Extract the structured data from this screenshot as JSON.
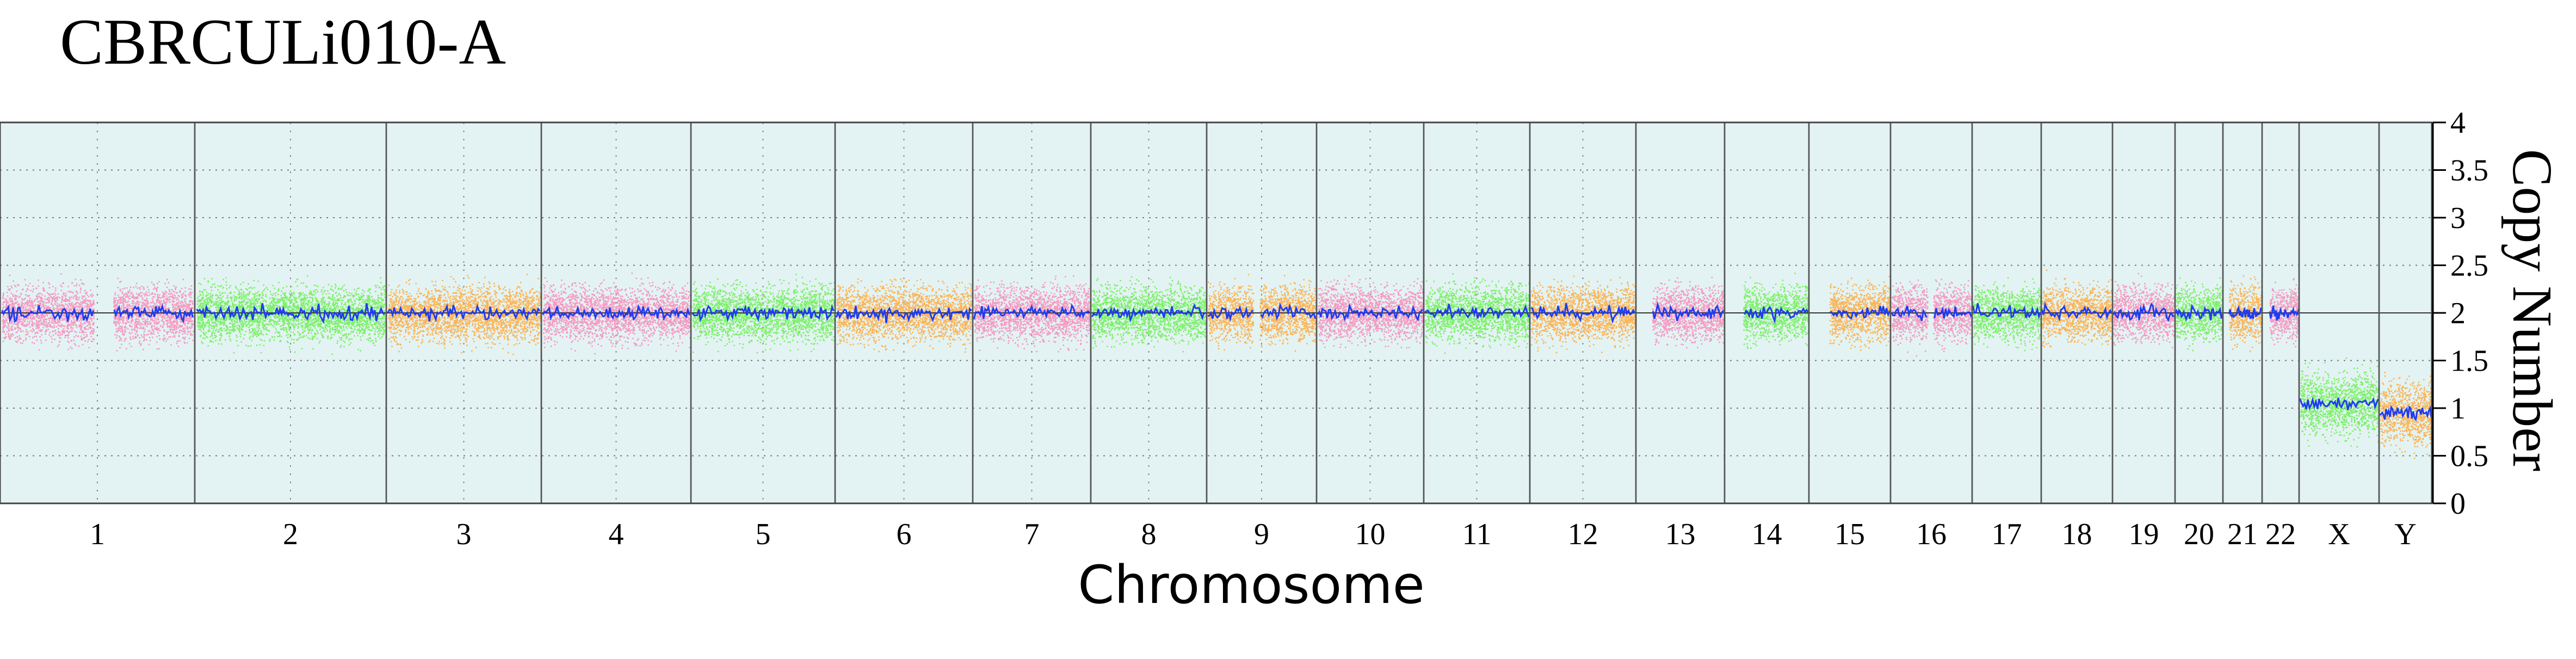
{
  "chart_data": {
    "type": "scatter",
    "title": "CBRCULi010-A",
    "xlabel": "Chromosome",
    "ylabel": "Copy Number",
    "ylim": [
      0,
      4
    ],
    "yticks": [
      0,
      0.5,
      1,
      1.5,
      2,
      2.5,
      3,
      3.5,
      4
    ],
    "ytick_labels": [
      "0",
      "0.5",
      "1",
      "1.5",
      "2",
      "2.5",
      "3",
      "3.5",
      "4"
    ],
    "y_axis_position": "right",
    "grid": "dotted",
    "reference_line": 2,
    "colors": {
      "panel_background": "#e3f3f3",
      "pink": "#f49ac1",
      "green": "#7cf06a",
      "orange": "#fbb457",
      "mean_line": "#1f3cf0",
      "border": "#555555"
    },
    "chromosomes": [
      {
        "label": "1",
        "mean": 2.0,
        "dots": "pink"
      },
      {
        "label": "2",
        "mean": 2.0,
        "dots": "green"
      },
      {
        "label": "3",
        "mean": 2.0,
        "dots": "orange"
      },
      {
        "label": "4",
        "mean": 2.0,
        "dots": "pink"
      },
      {
        "label": "5",
        "mean": 2.0,
        "dots": "green"
      },
      {
        "label": "6",
        "mean": 2.0,
        "dots": "orange"
      },
      {
        "label": "7",
        "mean": 2.0,
        "dots": "pink"
      },
      {
        "label": "8",
        "mean": 2.0,
        "dots": "green"
      },
      {
        "label": "9",
        "mean": 2.0,
        "dots": "orange"
      },
      {
        "label": "10",
        "mean": 2.0,
        "dots": "pink"
      },
      {
        "label": "11",
        "mean": 2.0,
        "dots": "green"
      },
      {
        "label": "12",
        "mean": 2.0,
        "dots": "orange"
      },
      {
        "label": "13",
        "mean": 2.0,
        "dots": "pink"
      },
      {
        "label": "14",
        "mean": 2.0,
        "dots": "green"
      },
      {
        "label": "15",
        "mean": 2.0,
        "dots": "orange"
      },
      {
        "label": "16",
        "mean": 2.0,
        "dots": "pink"
      },
      {
        "label": "17",
        "mean": 2.0,
        "dots": "green"
      },
      {
        "label": "18",
        "mean": 2.0,
        "dots": "orange"
      },
      {
        "label": "19",
        "mean": 2.0,
        "dots": "pink"
      },
      {
        "label": "20",
        "mean": 2.0,
        "dots": "green"
      },
      {
        "label": "21",
        "mean": 2.0,
        "dots": "orange"
      },
      {
        "label": "22",
        "mean": 2.0,
        "dots": "pink"
      },
      {
        "label": "X",
        "mean": 1.05,
        "dots": "green"
      },
      {
        "label": "Y",
        "mean": 0.95,
        "dots": "orange"
      }
    ]
  }
}
